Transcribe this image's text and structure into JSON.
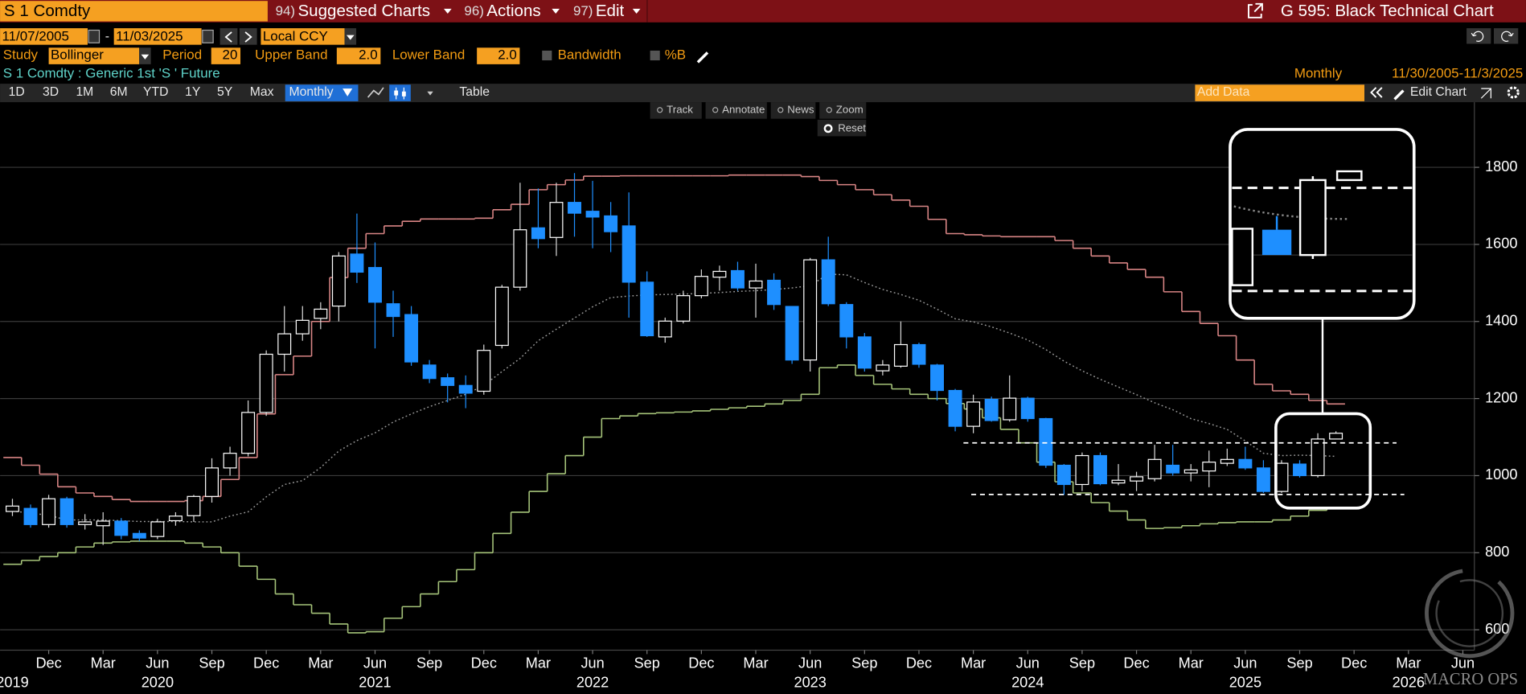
{
  "header": {
    "ticker": "S 1 Comdty",
    "menus": [
      {
        "number": "94)",
        "label": "Suggested Charts"
      },
      {
        "number": "96)",
        "label": "Actions"
      },
      {
        "number": "97)",
        "label": "Edit"
      }
    ],
    "function": "G 595: Black Technical Chart"
  },
  "range": {
    "start": "11/07/2005",
    "separator": "-",
    "end": "11/03/2025",
    "currency": "Local CCY"
  },
  "study": {
    "label": "Study",
    "name": "Bollinger",
    "period_label": "Period",
    "period": "20",
    "upper_label": "Upper Band",
    "upper": "2.0",
    "lower_label": "Lower Band",
    "lower": "2.0",
    "options": [
      "Bandwidth",
      "%B"
    ]
  },
  "security": "S 1 Comdty : Generic 1st 'S ' Future",
  "frequency": "Monthly",
  "period_range": "11/30/2005-11/3/2025",
  "periods": [
    "1D",
    "3D",
    "1M",
    "6M",
    "YTD",
    "1Y",
    "5Y",
    "Max"
  ],
  "frequency_button": "Monthly",
  "table": "Table",
  "add_data": "Add Data",
  "edit_chart": "Edit Chart",
  "tools": [
    "Track",
    "Annotate",
    "News",
    "Zoom"
  ],
  "reset": "Reset",
  "watermark": "MACRO OPS",
  "chart_data": {
    "type": "candlestick",
    "x": [
      "2019-10",
      "2019-11",
      "2019-12",
      "2020-01",
      "2020-02",
      "2020-03",
      "2020-04",
      "2020-05",
      "2020-06",
      "2020-07",
      "2020-08",
      "2020-09",
      "2020-10",
      "2020-11",
      "2020-12",
      "2021-01",
      "2021-02",
      "2021-03",
      "2021-04",
      "2021-05",
      "2021-06",
      "2021-07",
      "2021-08",
      "2021-09",
      "2021-10",
      "2021-11",
      "2021-12",
      "2022-01",
      "2022-02",
      "2022-03",
      "2022-04",
      "2022-05",
      "2022-06",
      "2022-07",
      "2022-08",
      "2022-09",
      "2022-10",
      "2022-11",
      "2022-12",
      "2023-01",
      "2023-02",
      "2023-03",
      "2023-04",
      "2023-05",
      "2023-06",
      "2023-07",
      "2023-08",
      "2023-09",
      "2023-10",
      "2023-11",
      "2023-12",
      "2024-01",
      "2024-02",
      "2024-03",
      "2024-04",
      "2024-05",
      "2024-06",
      "2024-07",
      "2024-08",
      "2024-09",
      "2024-10",
      "2024-11",
      "2024-12",
      "2025-01",
      "2025-02",
      "2025-03",
      "2025-04",
      "2025-05",
      "2025-06",
      "2025-07",
      "2025-08",
      "2025-09",
      "2025-10",
      "2025-11"
    ],
    "open": [
      907,
      915,
      873,
      940,
      873,
      870,
      882,
      850,
      842,
      883,
      896,
      946,
      1020,
      1058,
      1164,
      1315,
      1368,
      1408,
      1440,
      1575,
      1540,
      1446,
      1418,
      1287,
      1254,
      1234,
      1219,
      1338,
      1489,
      1643,
      1618,
      1709,
      1686,
      1674,
      1648,
      1502,
      1360,
      1401,
      1467,
      1515,
      1532,
      1487,
      1507,
      1439,
      1300,
      1560,
      1444,
      1360,
      1272,
      1284,
      1340,
      1287,
      1221,
      1128,
      1198,
      1145,
      1201,
      1148,
      1027,
      977,
      1052,
      981,
      986,
      992,
      1027,
      1007,
      1012,
      1032,
      1042,
      1020,
      959,
      1030,
      1000,
      1095
    ],
    "high": [
      940,
      925,
      950,
      945,
      900,
      905,
      890,
      858,
      888,
      905,
      950,
      1045,
      1075,
      1195,
      1325,
      1440,
      1440,
      1450,
      1580,
      1680,
      1605,
      1480,
      1440,
      1300,
      1265,
      1260,
      1340,
      1495,
      1760,
      1745,
      1760,
      1785,
      1765,
      1710,
      1735,
      1530,
      1410,
      1480,
      1535,
      1545,
      1555,
      1550,
      1525,
      1440,
      1565,
      1620,
      1450,
      1370,
      1300,
      1400,
      1345,
      1290,
      1225,
      1210,
      1205,
      1260,
      1205,
      1150,
      1030,
      1060,
      1060,
      1030,
      1010,
      1080,
      1080,
      1030,
      1065,
      1070,
      1075,
      1040,
      1040,
      1040,
      1110,
      1115
    ],
    "low": [
      895,
      865,
      865,
      865,
      860,
      820,
      835,
      830,
      835,
      870,
      880,
      930,
      1000,
      1050,
      1155,
      1270,
      1350,
      1380,
      1400,
      1500,
      1330,
      1360,
      1285,
      1240,
      1190,
      1175,
      1210,
      1330,
      1480,
      1590,
      1570,
      1620,
      1590,
      1580,
      1410,
      1360,
      1345,
      1395,
      1460,
      1480,
      1480,
      1410,
      1430,
      1290,
      1270,
      1440,
      1330,
      1270,
      1260,
      1280,
      1280,
      1195,
      1115,
      1110,
      1140,
      1140,
      1140,
      1020,
      950,
      960,
      975,
      975,
      960,
      985,
      1000,
      985,
      970,
      1025,
      1015,
      955,
      955,
      995,
      995,
      1095
    ],
    "close": [
      921,
      873,
      940,
      873,
      880,
      882,
      845,
      838,
      880,
      895,
      946,
      1020,
      1058,
      1164,
      1315,
      1368,
      1403,
      1432,
      1570,
      1528,
      1450,
      1413,
      1295,
      1252,
      1234,
      1214,
      1325,
      1489,
      1638,
      1615,
      1709,
      1681,
      1671,
      1633,
      1502,
      1363,
      1401,
      1467,
      1517,
      1530,
      1487,
      1505,
      1444,
      1300,
      1560,
      1446,
      1360,
      1279,
      1287,
      1340,
      1289,
      1221,
      1128,
      1191,
      1143,
      1201,
      1148,
      1027,
      977,
      1052,
      979,
      988,
      997,
      1042,
      1007,
      1015,
      1035,
      1042,
      1020,
      959,
      1032,
      1000,
      1095,
      1110
    ],
    "up_color": "#000000",
    "down_color": "#1e8fff",
    "lines": [
      {
        "color": "#d98585",
        "step": true,
        "values": [
          1047,
          1027,
          1004,
          971,
          955,
          946,
          938,
          933,
          933,
          933,
          935,
          946,
          990,
          1047,
          1160,
          1262,
          1310,
          1400,
          1514,
          1590,
          1628,
          1648,
          1660,
          1666,
          1666,
          1666,
          1668,
          1690,
          1704,
          1742,
          1755,
          1767,
          1777,
          1777,
          1778,
          1778,
          1778,
          1778,
          1778,
          1778,
          1780,
          1780,
          1780,
          1780,
          1776,
          1766,
          1755,
          1742,
          1729,
          1715,
          1699,
          1665,
          1628,
          1625,
          1622,
          1620,
          1620,
          1620,
          1610,
          1590,
          1570,
          1552,
          1535,
          1515,
          1477,
          1426,
          1395,
          1363,
          1300,
          1237,
          1220,
          1211,
          1195,
          1186
        ]
      },
      {
        "color": "#9a9a9a",
        "step": false,
        "dash": true,
        "values": [
          908,
          903,
          897,
          885,
          885,
          885,
          883,
          881,
          881,
          881,
          880,
          880,
          895,
          906,
          945,
          977,
          987,
          1021,
          1064,
          1091,
          1111,
          1139,
          1160,
          1179,
          1195,
          1211,
          1234,
          1270,
          1304,
          1350,
          1380,
          1409,
          1438,
          1462,
          1466,
          1469,
          1470,
          1471,
          1473,
          1475,
          1478,
          1480,
          1483,
          1487,
          1493,
          1523,
          1521,
          1501,
          1483,
          1470,
          1455,
          1432,
          1407,
          1399,
          1386,
          1370,
          1352,
          1327,
          1297,
          1272,
          1250,
          1230,
          1210,
          1189,
          1171,
          1148,
          1135,
          1120,
          1090,
          1058,
          1052,
          1053,
          1052,
          1050
        ]
      },
      {
        "color": "#a6c47a",
        "step": true,
        "values": [
          770,
          780,
          790,
          800,
          815,
          825,
          828,
          830,
          830,
          830,
          825,
          815,
          800,
          765,
          731,
          693,
          665,
          643,
          615,
          592,
          595,
          630,
          660,
          693,
          725,
          756,
          800,
          850,
          905,
          959,
          1005,
          1052,
          1100,
          1148,
          1155,
          1161,
          1163,
          1165,
          1168,
          1172,
          1176,
          1180,
          1186,
          1195,
          1211,
          1280,
          1287,
          1260,
          1237,
          1225,
          1211,
          1200,
          1187,
          1173,
          1150,
          1120,
          1085,
          1035,
          984,
          955,
          930,
          908,
          885,
          863,
          865,
          870,
          875,
          878,
          880,
          880,
          885,
          895,
          910,
          915
        ]
      }
    ],
    "xlim": [
      "2019-09",
      "2026-07"
    ],
    "ylim": [
      547,
      1969
    ],
    "yticks": [
      600,
      800,
      1000,
      1200,
      1400,
      1600,
      1800
    ],
    "grid": true,
    "xticks": [
      {
        "value": "2019-12",
        "label": "Dec"
      },
      {
        "value": "2020-03",
        "label": "Mar"
      },
      {
        "value": "2020-06",
        "label": "Jun"
      },
      {
        "value": "2020-09",
        "label": "Sep"
      },
      {
        "value": "2020-12",
        "label": "Dec"
      },
      {
        "value": "2021-03",
        "label": "Mar"
      },
      {
        "value": "2021-06",
        "label": "Jun"
      },
      {
        "value": "2021-09",
        "label": "Sep"
      },
      {
        "value": "2021-12",
        "label": "Dec"
      },
      {
        "value": "2022-03",
        "label": "Mar"
      },
      {
        "value": "2022-06",
        "label": "Jun"
      },
      {
        "value": "2022-09",
        "label": "Sep"
      },
      {
        "value": "2022-12",
        "label": "Dec"
      },
      {
        "value": "2023-03",
        "label": "Mar"
      },
      {
        "value": "2023-06",
        "label": "Jun"
      },
      {
        "value": "2023-09",
        "label": "Sep"
      },
      {
        "value": "2023-12",
        "label": "Dec"
      },
      {
        "value": "2024-03",
        "label": "Mar"
      },
      {
        "value": "2024-06",
        "label": "Jun"
      },
      {
        "value": "2024-09",
        "label": "Sep"
      },
      {
        "value": "2024-12",
        "label": "Dec"
      },
      {
        "value": "2025-03",
        "label": "Mar"
      },
      {
        "value": "2025-06",
        "label": "Jun"
      },
      {
        "value": "2025-09",
        "label": "Sep"
      },
      {
        "value": "2025-12",
        "label": "Dec"
      },
      {
        "value": "2026-03",
        "label": "Mar"
      },
      {
        "value": "2026-06",
        "label": "Jun"
      }
    ],
    "year_ticks": [
      {
        "value": "2019-10",
        "label": "2019"
      },
      {
        "value": "2020-06",
        "label": "2020"
      },
      {
        "value": "2021-06",
        "label": "2021"
      },
      {
        "value": "2022-06",
        "label": "2022"
      },
      {
        "value": "2023-06",
        "label": "2023"
      },
      {
        "value": "2024-06",
        "label": "2024"
      },
      {
        "value": "2025-06",
        "label": "2025"
      },
      {
        "value": "2026-03",
        "label": "2026"
      }
    ]
  }
}
